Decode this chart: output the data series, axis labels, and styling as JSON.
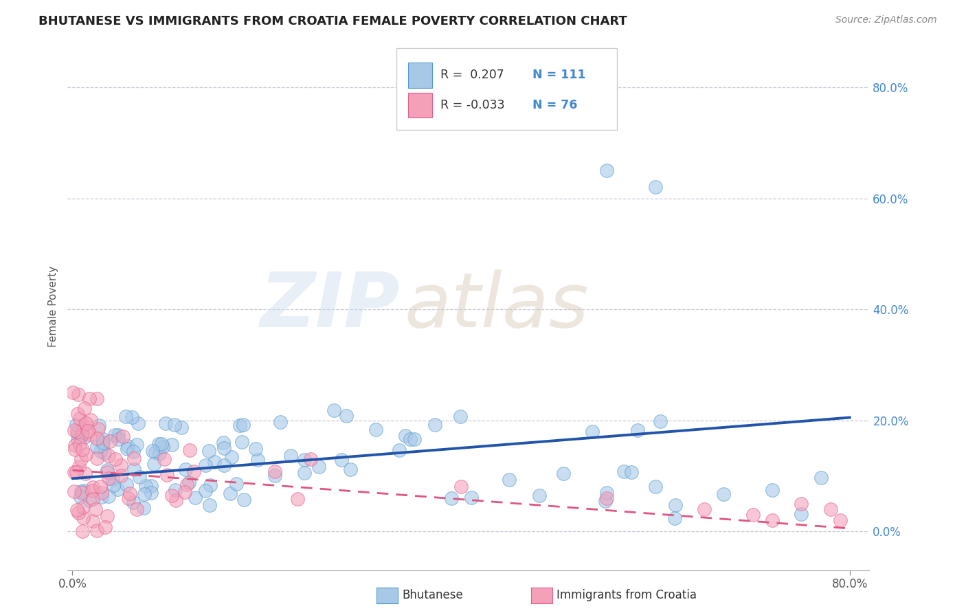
{
  "title": "BHUTANESE VS IMMIGRANTS FROM CROATIA FEMALE POVERTY CORRELATION CHART",
  "source": "Source: ZipAtlas.com",
  "ylabel": "Female Poverty",
  "legend_label1": "Bhutanese",
  "legend_label2": "Immigrants from Croatia",
  "r1": 0.207,
  "n1": 111,
  "r2": -0.033,
  "n2": 76,
  "color_blue": "#a8c8e8",
  "color_blue_edge": "#5599cc",
  "color_pink": "#f4a0b8",
  "color_pink_edge": "#e06090",
  "color_blue_line": "#2255aa",
  "color_pink_line": "#e05580",
  "watermark_zip": "ZIP",
  "watermark_atlas": "atlas",
  "ytick_labels": [
    "0.0%",
    "20.0%",
    "40.0%",
    "60.0%",
    "80.0%"
  ],
  "ytick_values": [
    0.0,
    0.2,
    0.4,
    0.6,
    0.8
  ],
  "xtick_labels": [
    "0.0%",
    "80.0%"
  ],
  "xtick_values": [
    0.0,
    0.8
  ],
  "xlim": [
    -0.005,
    0.82
  ],
  "ylim": [
    -0.07,
    0.88
  ],
  "blue_line_x": [
    0.0,
    0.8
  ],
  "blue_line_y": [
    0.095,
    0.205
  ],
  "pink_line_x": [
    0.0,
    0.8
  ],
  "pink_line_y": [
    0.11,
    0.005
  ],
  "title_fontsize": 13,
  "source_fontsize": 10,
  "ytick_color": "#4488cc",
  "legend_r_color": "#333333",
  "legend_n_color": "#4488cc"
}
